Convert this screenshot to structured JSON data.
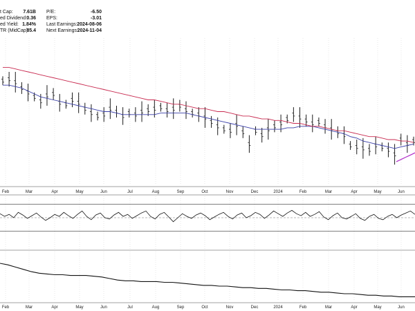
{
  "header": {
    "left": [
      {
        "label": "t Cap:",
        "value": "7.61B"
      },
      {
        "label": "ed Dividend:",
        "value": "0.36"
      },
      {
        "label": "ed Yield:",
        "value": "1.84%"
      },
      {
        "label": "TR (MidCap):",
        "value": "85.4"
      }
    ],
    "right": [
      {
        "label": "P/E:",
        "value": "-6.50"
      },
      {
        "label": "EPS:",
        "value": "-3.01"
      },
      {
        "label": "Last Earnings:",
        "value": "2024-08-06"
      },
      {
        "label": "Next Earnings:",
        "value": "2024-11-04"
      }
    ]
  },
  "chart_data": [
    {
      "type": "ohlc",
      "x_ticks": [
        "Feb",
        "Mar",
        "Apr",
        "May",
        "Jun",
        "Jul",
        "Aug",
        "Sep",
        "Oct",
        "Nov",
        "Dec",
        "2024",
        "Feb",
        "Mar",
        "Apr",
        "May",
        "Jun"
      ],
      "series": [
        {
          "color": "#1a1a1a",
          "values": [
            71,
            72,
            70,
            66,
            63,
            60,
            57,
            61,
            62,
            56,
            55,
            58,
            56,
            52,
            49,
            47,
            48,
            52,
            50,
            47,
            49,
            48,
            50,
            51,
            52,
            53,
            51,
            52,
            54,
            51,
            49,
            48,
            46,
            43,
            40,
            38,
            37,
            41,
            36,
            28,
            37,
            34,
            38,
            40,
            42,
            45,
            48,
            46,
            44,
            42,
            43,
            40,
            38,
            36,
            34,
            27,
            26,
            25,
            24,
            27,
            26,
            24,
            21,
            31,
            28,
            30
          ]
        },
        {
          "color": "#3a3fa8",
          "values": [
            68,
            68,
            67,
            66,
            64,
            62,
            60,
            59,
            58,
            57,
            56,
            55,
            54,
            53,
            52,
            51,
            50,
            50,
            49,
            48,
            48,
            48,
            48,
            48,
            48,
            49,
            49,
            49,
            49,
            49,
            48,
            47,
            46,
            45,
            44,
            43,
            42,
            41,
            40,
            39,
            38,
            38,
            38,
            38,
            38,
            39,
            39,
            40,
            40,
            40,
            39,
            38,
            37,
            36,
            35,
            33,
            32,
            30,
            29,
            28,
            27,
            26,
            25,
            26,
            27,
            28
          ]
        },
        {
          "color": "#c8294f",
          "values": [
            80,
            80,
            79,
            78,
            77,
            76,
            75,
            74,
            73,
            72,
            71,
            70,
            69,
            68,
            67,
            66,
            65,
            64,
            63,
            62,
            61,
            60,
            59,
            58,
            58,
            57,
            56,
            55,
            55,
            54,
            53,
            52,
            52,
            51,
            50,
            50,
            49,
            48,
            47,
            47,
            46,
            45,
            45,
            44,
            44,
            43,
            42,
            42,
            41,
            40,
            40,
            39,
            38,
            37,
            37,
            36,
            35,
            34,
            33,
            33,
            32,
            31,
            31,
            30,
            30,
            29
          ]
        },
        {
          "color": "#b02cc8",
          "values": [
            16,
            17,
            18,
            19,
            20,
            21,
            22
          ]
        }
      ]
    },
    {
      "type": "line",
      "x_ticks": [],
      "reference_lines": [
        30,
        50,
        70
      ],
      "series": [
        {
          "color": "#111111",
          "values": [
            56,
            52,
            55,
            50,
            58,
            54,
            49,
            53,
            57,
            51,
            46,
            50,
            55,
            52,
            58,
            53,
            49,
            55,
            60,
            52,
            47,
            54,
            57,
            50,
            48,
            54,
            58,
            52,
            55,
            49,
            53,
            57,
            60,
            52,
            48,
            55,
            58,
            51,
            44,
            50,
            56,
            52,
            49,
            54,
            57,
            53,
            47,
            51,
            55,
            58,
            52,
            48,
            54,
            57,
            50,
            53,
            58,
            55,
            49,
            54,
            60,
            56,
            52,
            57,
            61,
            56,
            53,
            58,
            52,
            55,
            59,
            51,
            47,
            53,
            57,
            50,
            48,
            52,
            56,
            49,
            46,
            52,
            55,
            49,
            47,
            52,
            55,
            50,
            54,
            57,
            60,
            55
          ]
        }
      ]
    },
    {
      "type": "line",
      "x_ticks": [
        "Feb",
        "Mar",
        "Apr",
        "May",
        "Jun",
        "Jul",
        "Aug",
        "Sep",
        "Oct",
        "Nov",
        "Dec",
        "2024",
        "Feb",
        "Mar",
        "Apr",
        "May",
        "Jun"
      ],
      "series": [
        {
          "color": "#111111",
          "values": [
            100,
            98,
            95,
            92,
            89,
            87,
            86,
            85,
            85,
            84,
            84,
            84,
            83,
            82,
            80,
            78,
            77,
            77,
            76,
            76,
            76,
            75,
            75,
            74,
            73,
            72,
            71,
            71,
            70,
            70,
            69,
            68,
            68,
            67,
            67,
            66,
            65,
            65,
            64,
            64,
            63,
            62,
            62,
            61,
            60,
            60,
            59,
            58,
            58,
            57,
            57,
            56,
            56,
            56
          ]
        }
      ]
    }
  ]
}
